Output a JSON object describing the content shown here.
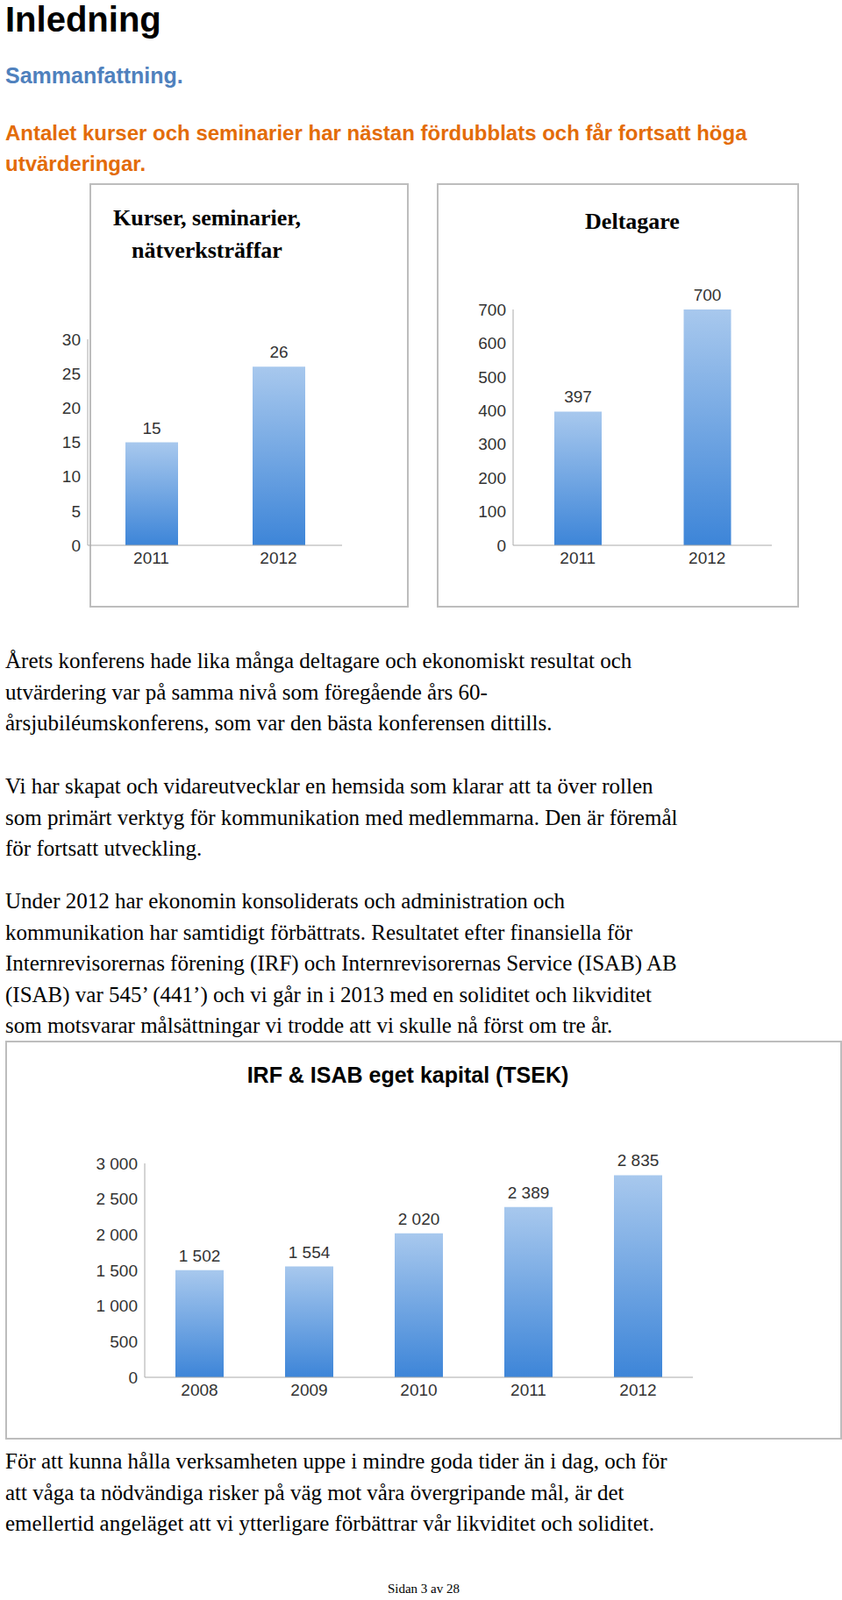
{
  "heading": "Inledning",
  "subheading": "Sammanfattning.",
  "lead": [
    "Antalet kurser och seminarier har nästan fördubblats och får fortsatt höga",
    "utvärderingar."
  ],
  "chart_data": [
    {
      "type": "bar",
      "title": "Kurser, seminarier, nätverksträffar",
      "categories": [
        "2011",
        "2012"
      ],
      "values": [
        15,
        26
      ],
      "color": "#3d85d8",
      "ylim": [
        0,
        30
      ],
      "yticks": [
        0,
        5,
        10,
        15,
        20,
        25,
        30
      ],
      "grid": false,
      "data_labels": true
    },
    {
      "type": "bar",
      "title": "Deltagare",
      "categories": [
        "2011",
        "2012"
      ],
      "values": [
        397,
        700
      ],
      "color": "#3d85d8",
      "ylim": [
        0,
        700
      ],
      "yticks": [
        0,
        100,
        200,
        300,
        400,
        500,
        600,
        700
      ],
      "grid": false,
      "data_labels": true
    },
    {
      "type": "bar",
      "title": "IRF & ISAB eget kapital (TSEK)",
      "categories": [
        "2008",
        "2009",
        "2010",
        "2011",
        "2012"
      ],
      "values": [
        1502,
        1554,
        2020,
        2389,
        2835
      ],
      "value_labels": [
        "1 502",
        "1 554",
        "2 020",
        "2 389",
        "2 835"
      ],
      "color": "#3d85d8",
      "ylim": [
        0,
        3000
      ],
      "yticks": [
        0,
        500,
        {
          "value": 1000,
          "label": "1 000"
        },
        {
          "value": 1500,
          "label": "1 500"
        },
        {
          "value": 2000,
          "label": "2 000"
        },
        {
          "value": 2500,
          "label": "2 500"
        },
        {
          "value": 3000,
          "label": "3 000"
        }
      ],
      "grid": false,
      "data_labels": true
    }
  ],
  "paragraphs": [
    [
      "Årets konferens hade lika många deltagare och ekonomiskt resultat och",
      "utvärdering var på samma nivå som föregående års 60-",
      "årsjubiléumskonferens, som var den bästa konferensen dittills."
    ],
    [
      "Vi har skapat och vidareutvecklar en hemsida som klarar att ta över rollen",
      "som primärt verktyg för kommunikation med medlemmarna. Den är föremål",
      "för fortsatt utveckling."
    ],
    [
      "Under 2012 har ekonomin konsoliderats och administration och",
      "kommunikation har samtidigt förbättrats. Resultatet efter finansiella för",
      "Internrevisorernas förening (IRF) och Internrevisorernas Service (ISAB) AB",
      "(ISAB) var 545’ (441’) och vi går in i 2013 med en soliditet och likviditet",
      "som motsvarar målsättningar vi trodde att vi skulle nå först om tre år."
    ]
  ],
  "closing": [
    "För att kunna hålla verksamheten uppe i mindre goda tider än i dag, och för",
    "att våga ta nödvändiga risker på väg mot våra övergripande mål, är det",
    "emellertid angeläget att vi ytterligare förbättrar vår likviditet och soliditet."
  ],
  "footer": "Sidan 3 av 28"
}
